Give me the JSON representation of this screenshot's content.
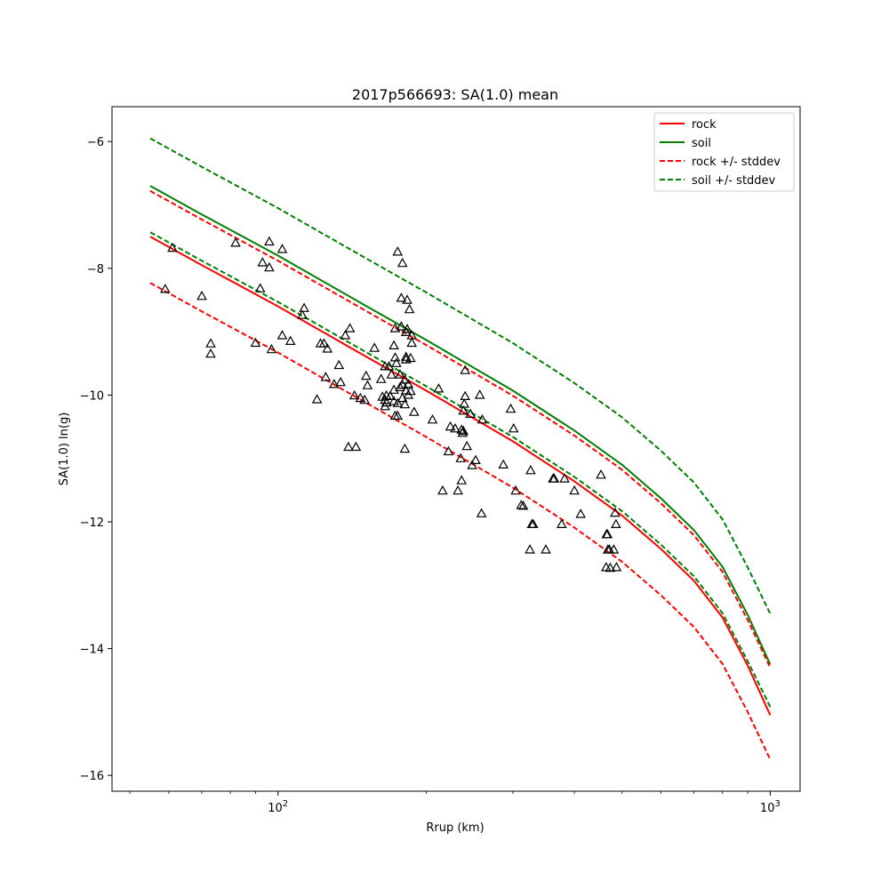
{
  "chart_data": {
    "type": "line",
    "title": "2017p566693: SA(1.0) mean",
    "xlabel": "Rrup (km)",
    "ylabel": "SA(1.0) ln(g)",
    "xscale": "log",
    "xlim": [
      46,
      1150
    ],
    "ylim": [
      -16.25,
      -5.45
    ],
    "x_ticks": [
      100,
      1000
    ],
    "x_tick_labels": [
      "10^2",
      "10^3"
    ],
    "y_ticks": [
      -6,
      -8,
      -10,
      -12,
      -14,
      -16
    ],
    "y_tick_labels": [
      "−6",
      "−8",
      "−10",
      "−12",
      "−14",
      "−16"
    ],
    "grid": false,
    "legend_position": "top-right",
    "series": [
      {
        "name": "rock",
        "style": "solid",
        "color": "#ff0000",
        "x": [
          55,
          70,
          100,
          150,
          200,
          300,
          400,
          500,
          600,
          700,
          800,
          900,
          1000
        ],
        "y": [
          -7.5,
          -7.95,
          -8.6,
          -9.38,
          -9.93,
          -10.73,
          -11.36,
          -11.9,
          -12.43,
          -12.93,
          -13.51,
          -14.27,
          -15.05
        ]
      },
      {
        "name": "soil",
        "style": "solid",
        "color": "#008000",
        "x": [
          55,
          70,
          100,
          150,
          200,
          300,
          400,
          500,
          600,
          700,
          800,
          900,
          1000
        ],
        "y": [
          -6.7,
          -7.15,
          -7.8,
          -8.58,
          -9.13,
          -9.93,
          -10.56,
          -11.1,
          -11.63,
          -12.13,
          -12.71,
          -13.47,
          -14.25
        ]
      },
      {
        "name": "rock +/- stddev",
        "style": "dashed",
        "color": "#ff0000",
        "x": [
          55,
          70,
          100,
          150,
          200,
          300,
          400,
          500,
          600,
          700,
          800,
          900,
          1000
        ],
        "y": [
          -6.78,
          -7.23,
          -7.88,
          -8.66,
          -9.21,
          -10.01,
          -10.64,
          -11.18,
          -11.71,
          -12.21,
          -12.79,
          -13.55,
          -14.3
        ]
      },
      {
        "name": "",
        "style": "dashed",
        "color": "#ff0000",
        "x": [
          55,
          70,
          100,
          150,
          200,
          300,
          400,
          500,
          600,
          700,
          800,
          900,
          1000
        ],
        "y": [
          -8.23,
          -8.68,
          -9.33,
          -10.11,
          -10.66,
          -11.46,
          -12.09,
          -12.63,
          -13.16,
          -13.66,
          -14.24,
          -15.0,
          -15.75
        ]
      },
      {
        "name": "soil +/- stddev",
        "style": "dashed",
        "color": "#008000",
        "x": [
          55,
          70,
          100,
          150,
          200,
          300,
          400,
          500,
          600,
          700,
          800,
          900,
          1000
        ],
        "y": [
          -5.95,
          -6.4,
          -7.05,
          -7.83,
          -8.38,
          -9.18,
          -9.81,
          -10.35,
          -10.88,
          -11.38,
          -11.96,
          -12.72,
          -13.45
        ]
      },
      {
        "name": "",
        "style": "dashed",
        "color": "#008000",
        "x": [
          55,
          70,
          100,
          150,
          200,
          300,
          400,
          500,
          600,
          700,
          800,
          900,
          1000
        ],
        "y": [
          -7.43,
          -7.88,
          -8.53,
          -9.31,
          -9.86,
          -10.66,
          -11.29,
          -11.83,
          -12.36,
          -12.86,
          -13.44,
          -14.2,
          -14.92
        ]
      }
    ],
    "observations": {
      "marker": "triangle",
      "x": [
        59,
        61,
        70,
        73,
        73,
        82,
        90,
        92,
        93,
        96,
        96,
        97,
        102,
        102,
        106,
        112,
        113,
        120,
        122,
        124,
        125,
        126,
        130,
        133,
        134,
        137,
        139,
        140,
        143,
        144,
        147,
        150,
        151,
        152,
        157,
        162,
        163,
        165,
        165,
        165,
        166,
        166,
        168,
        169,
        170,
        172,
        172,
        172,
        173,
        173,
        173,
        174,
        175,
        175,
        175,
        177,
        177,
        178,
        178,
        179,
        179,
        179,
        181,
        181,
        181,
        182,
        182,
        182,
        182,
        183,
        183,
        184,
        184,
        185,
        186,
        186,
        187,
        187,
        189,
        206,
        212,
        216,
        222,
        224,
        229,
        232,
        235,
        236,
        236,
        237,
        238,
        238,
        239,
        240,
        240,
        242,
        246,
        248,
        252,
        257,
        259,
        260,
        287,
        297,
        301,
        304,
        312,
        315,
        325,
        326,
        328,
        330,
        350,
        362,
        364,
        377,
        382,
        400,
        412,
        453,
        464,
        465,
        467,
        468,
        471,
        473,
        481,
        484,
        487,
        486
      ],
      "y": [
        -8.33,
        -7.68,
        -8.44,
        -9.35,
        -9.19,
        -7.6,
        -9.18,
        -8.32,
        -7.91,
        -7.58,
        -7.99,
        -9.28,
        -9.06,
        -7.7,
        -9.15,
        -8.74,
        -8.63,
        -10.07,
        -9.19,
        -9.19,
        -9.72,
        -9.27,
        -9.83,
        -9.53,
        -9.8,
        -9.06,
        -10.82,
        -8.95,
        -10.01,
        -10.82,
        -10.05,
        -10.08,
        -9.7,
        -9.85,
        -9.26,
        -9.75,
        -10.03,
        -9.55,
        -10.08,
        -10.18,
        -10.12,
        -10.01,
        -9.55,
        -10.02,
        -9.68,
        -9.92,
        -10.1,
        -9.22,
        -8.95,
        -9.41,
        -10.33,
        -9.5,
        -7.74,
        -10.13,
        -10.33,
        -9.68,
        -9.88,
        -8.92,
        -8.47,
        -7.92,
        -10.05,
        -9.84,
        -10.85,
        -9.76,
        -10.15,
        -9.01,
        -9.93,
        -9.4,
        -9.44,
        -8.96,
        -8.5,
        -9.83,
        -10.0,
        -8.65,
        -9.94,
        -9.42,
        -9.06,
        -9.18,
        -10.27,
        -10.39,
        -9.9,
        -11.51,
        -10.89,
        -10.5,
        -10.53,
        -11.51,
        -11.0,
        -11.35,
        -10.55,
        -10.6,
        -10.25,
        -10.57,
        -10.14,
        -9.61,
        -10.02,
        -10.81,
        -10.3,
        -11.11,
        -11.03,
        -10.0,
        -11.87,
        -10.39,
        -11.1,
        -10.22,
        -10.53,
        -11.51,
        -11.74,
        -11.75,
        -12.44,
        -11.19,
        -12.04,
        -12.04,
        -12.44,
        -11.32,
        -11.32,
        -12.04,
        -11.32,
        -11.51,
        -11.88,
        -11.26,
        -12.72,
        -12.2,
        -12.2,
        -12.44,
        -12.44,
        -12.73,
        -12.44,
        -11.86,
        -12.72,
        -12.04
      ]
    },
    "colors": {
      "rock": "#ff0000",
      "soil": "#008000",
      "markers": "#000000"
    }
  }
}
